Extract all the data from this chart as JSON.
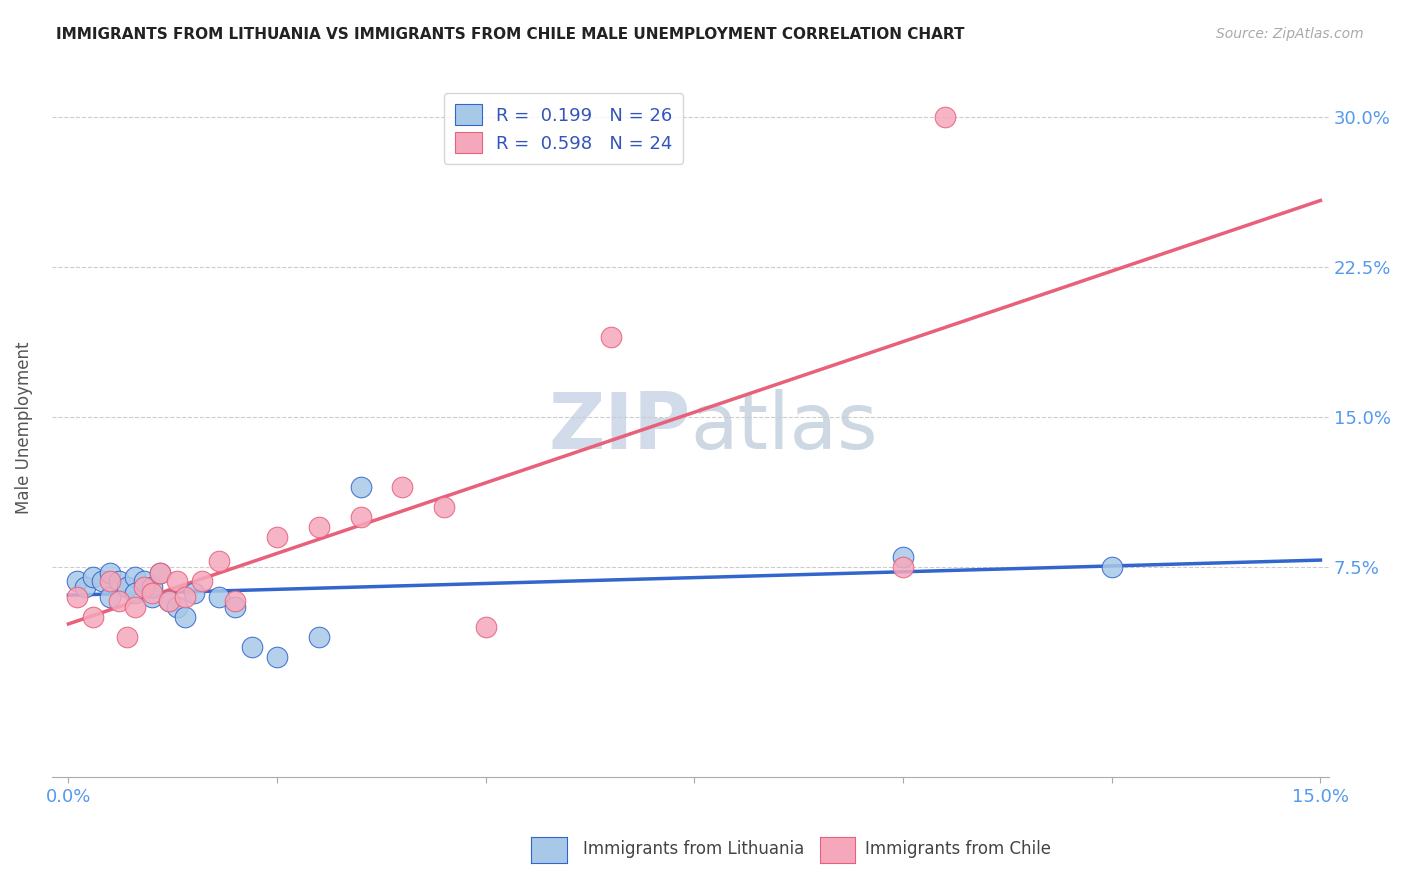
{
  "title": "IMMIGRANTS FROM LITHUANIA VS IMMIGRANTS FROM CHILE MALE UNEMPLOYMENT CORRELATION CHART",
  "source": "Source: ZipAtlas.com",
  "ylabel": "Male Unemployment",
  "xlim": [
    0.0,
    0.15
  ],
  "ylim": [
    -0.03,
    0.32
  ],
  "yticks": [
    0.0,
    0.075,
    0.15,
    0.225,
    0.3
  ],
  "ytick_labels_right": [
    "",
    "7.5%",
    "15.0%",
    "22.5%",
    "30.0%"
  ],
  "xticks": [
    0.0,
    0.025,
    0.05,
    0.075,
    0.1,
    0.125,
    0.15
  ],
  "xtick_labels": [
    "0.0%",
    "",
    "",
    "",
    "",
    "",
    "15.0%"
  ],
  "lithuania_R": 0.199,
  "lithuania_N": 26,
  "chile_R": 0.598,
  "chile_N": 24,
  "lithuania_color": "#a8c8e8",
  "chile_color": "#f5a8bc",
  "lithuania_line_color": "#3366cc",
  "chile_line_color": "#e8607a",
  "watermark_color": "#ccd8e8",
  "lithuania_x": [
    0.001,
    0.002,
    0.003,
    0.004,
    0.005,
    0.005,
    0.006,
    0.007,
    0.008,
    0.008,
    0.009,
    0.01,
    0.01,
    0.011,
    0.012,
    0.013,
    0.014,
    0.015,
    0.018,
    0.02,
    0.022,
    0.025,
    0.03,
    0.035,
    0.1,
    0.125
  ],
  "lithuania_y": [
    0.068,
    0.065,
    0.07,
    0.068,
    0.072,
    0.06,
    0.068,
    0.065,
    0.07,
    0.062,
    0.068,
    0.06,
    0.065,
    0.072,
    0.058,
    0.055,
    0.05,
    0.062,
    0.06,
    0.055,
    0.035,
    0.03,
    0.04,
    0.115,
    0.08,
    0.075
  ],
  "chile_x": [
    0.001,
    0.003,
    0.005,
    0.006,
    0.007,
    0.008,
    0.009,
    0.01,
    0.011,
    0.012,
    0.013,
    0.014,
    0.016,
    0.018,
    0.02,
    0.025,
    0.03,
    0.035,
    0.04,
    0.045,
    0.05,
    0.065,
    0.1,
    0.105
  ],
  "chile_y": [
    0.06,
    0.05,
    0.068,
    0.058,
    0.04,
    0.055,
    0.065,
    0.062,
    0.072,
    0.058,
    0.068,
    0.06,
    0.068,
    0.078,
    0.058,
    0.09,
    0.095,
    0.1,
    0.115,
    0.105,
    0.045,
    0.19,
    0.075,
    0.3
  ]
}
